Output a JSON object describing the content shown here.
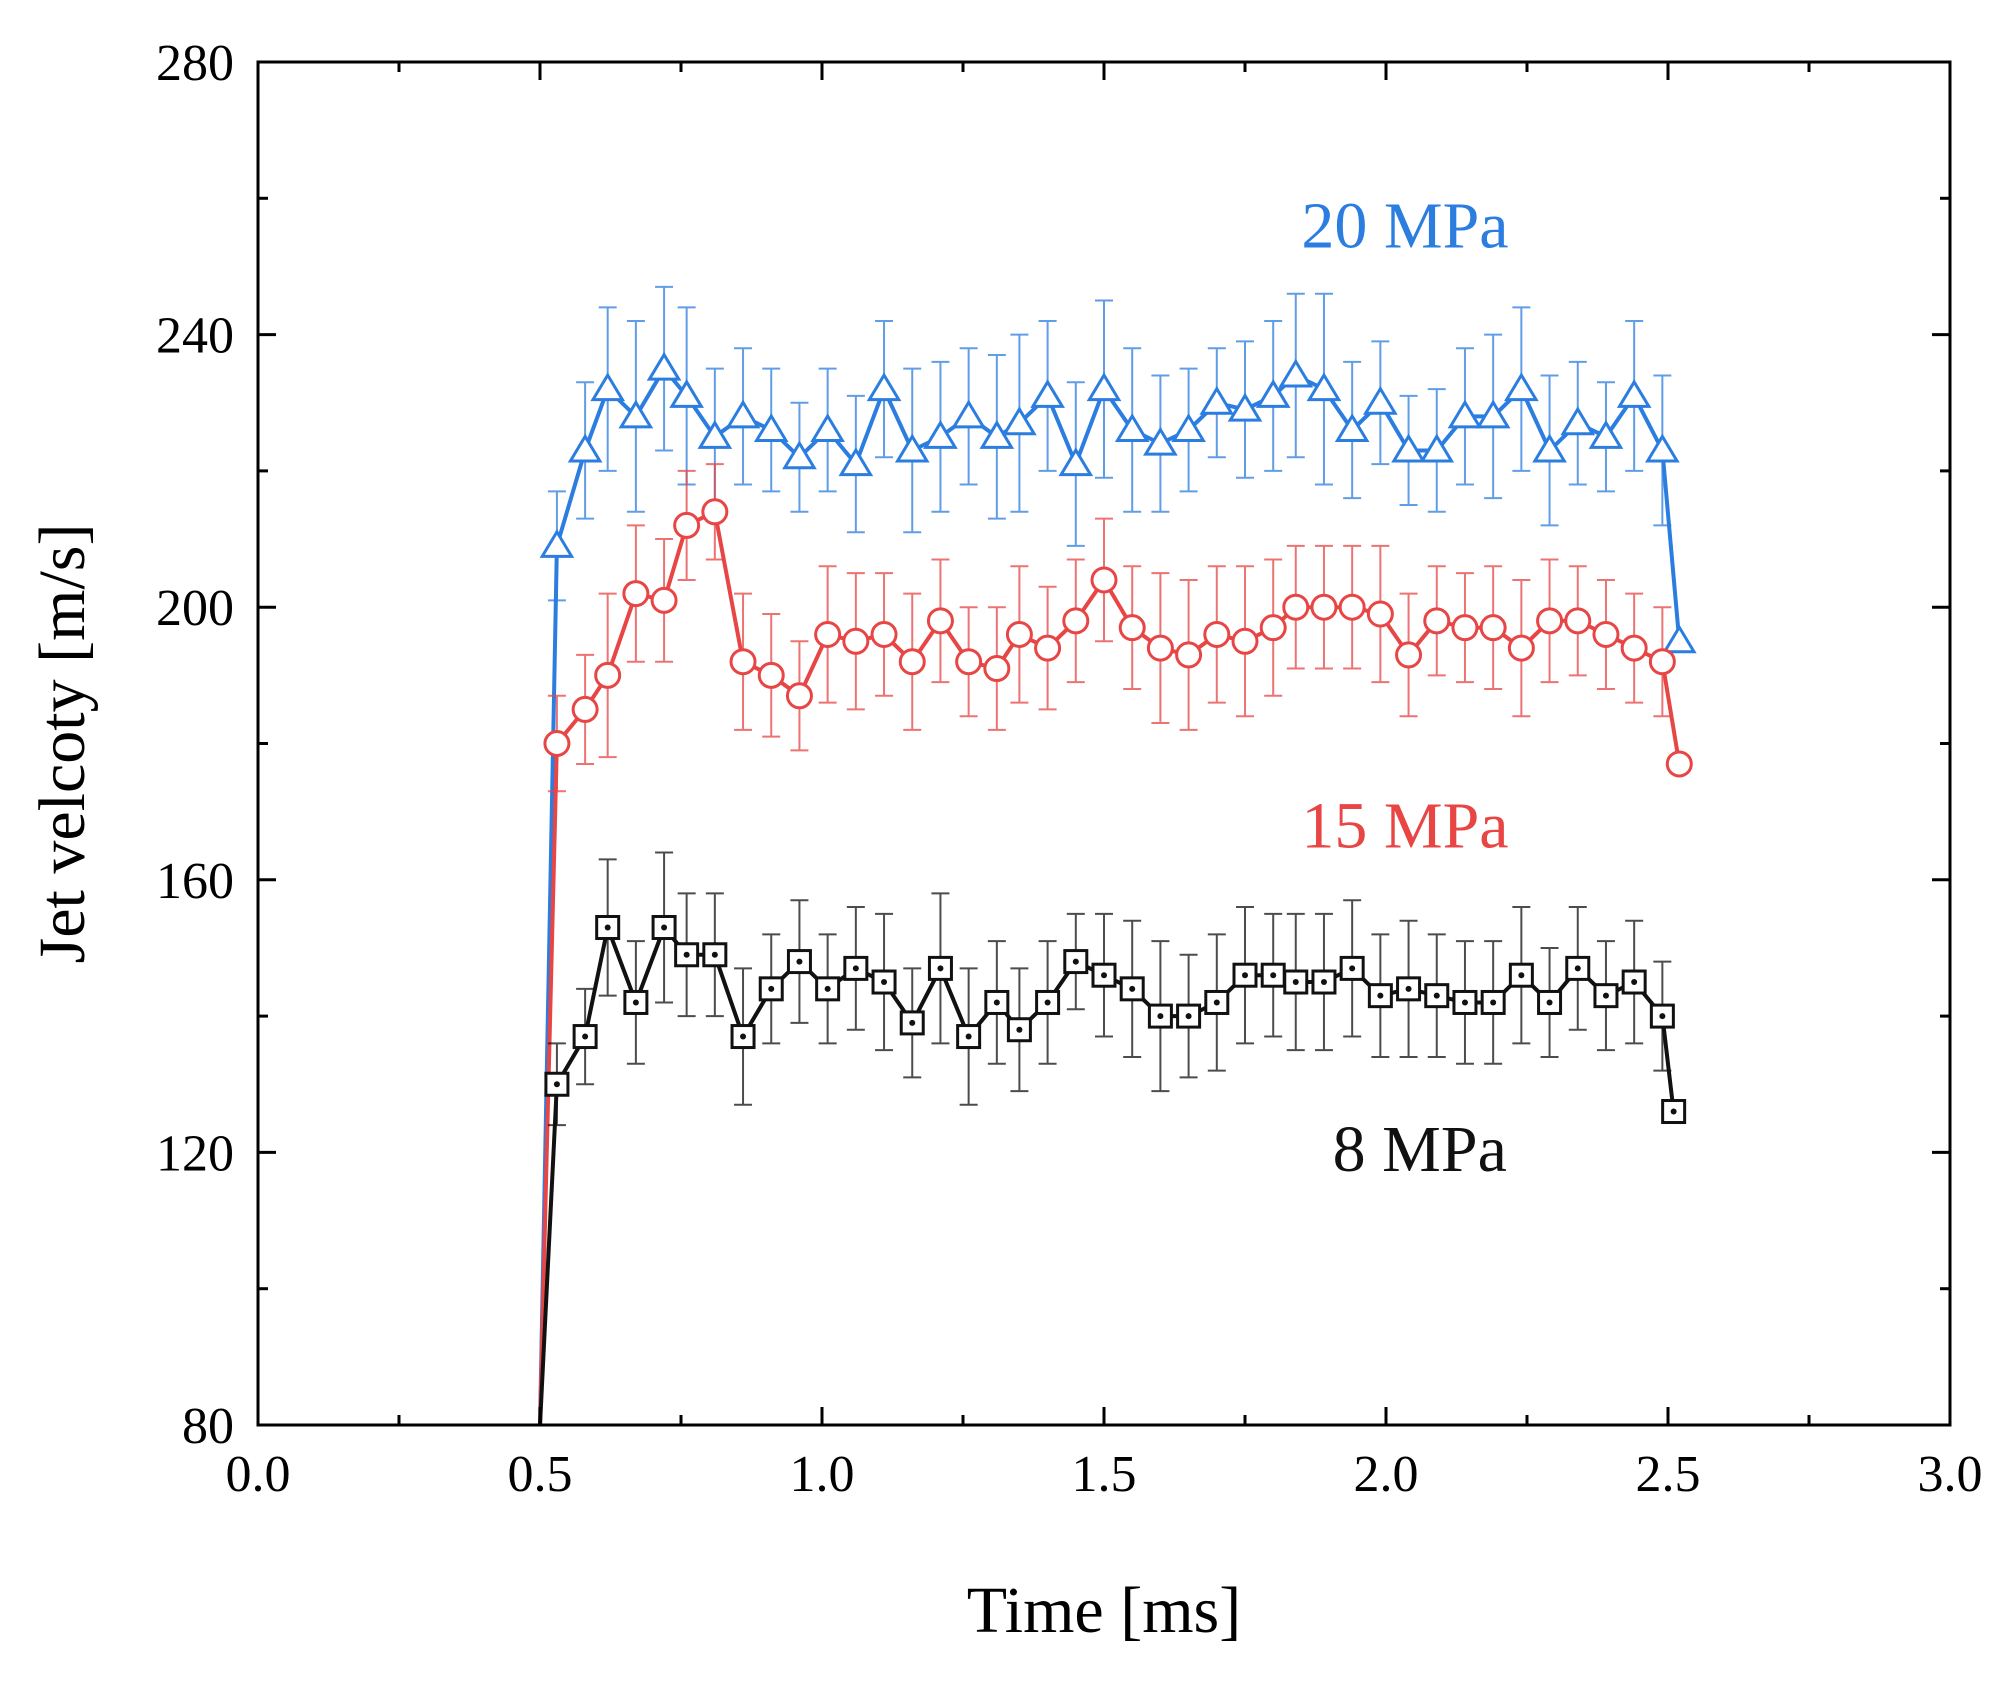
{
  "chart_data": {
    "type": "line",
    "title": "",
    "xlabel": "Time [ms]",
    "ylabel": "Jet velcoty [m/s]",
    "xlim": [
      0.0,
      3.0
    ],
    "ylim": [
      80,
      280
    ],
    "xticks": [
      0.0,
      0.5,
      1.0,
      1.5,
      2.0,
      2.5,
      3.0
    ],
    "xtick_labels": [
      "0.0",
      "0.5",
      "1.0",
      "1.5",
      "2.0",
      "2.5",
      "3.0"
    ],
    "yticks": [
      80,
      120,
      160,
      200,
      240,
      280
    ],
    "ytick_labels": [
      "80",
      "120",
      "160",
      "200",
      "240",
      "280"
    ],
    "grid": false,
    "legend": "inline labels next to series",
    "error_bars": true,
    "series": [
      {
        "name": "20 MPa",
        "label": "20 MPa",
        "color": "#2b7de0",
        "marker": "triangle",
        "x": [
          0.5,
          0.53,
          0.58,
          0.62,
          0.67,
          0.72,
          0.76,
          0.81,
          0.86,
          0.91,
          0.96,
          1.01,
          1.06,
          1.11,
          1.16,
          1.21,
          1.26,
          1.31,
          1.35,
          1.4,
          1.45,
          1.5,
          1.55,
          1.6,
          1.65,
          1.7,
          1.75,
          1.8,
          1.84,
          1.89,
          1.94,
          1.99,
          2.04,
          2.09,
          2.14,
          2.19,
          2.24,
          2.29,
          2.34,
          2.39,
          2.44,
          2.49,
          2.52
        ],
        "y": [
          80,
          209,
          223,
          232,
          228,
          235,
          231,
          225,
          228,
          226,
          222,
          226,
          221,
          232,
          223,
          225,
          228,
          225,
          227,
          231,
          221,
          232,
          226,
          224,
          226,
          230,
          229,
          231,
          234,
          232,
          226,
          230,
          223,
          223,
          228,
          228,
          232,
          223,
          227,
          225,
          231,
          223,
          195
        ],
        "err": [
          0,
          8,
          10,
          12,
          14,
          12,
          13,
          10,
          10,
          9,
          8,
          9,
          10,
          10,
          12,
          11,
          10,
          12,
          13,
          11,
          12,
          13,
          12,
          10,
          9,
          8,
          10,
          11,
          12,
          14,
          10,
          9,
          8,
          9,
          10,
          12,
          12,
          11,
          9,
          8,
          11,
          11,
          0
        ]
      },
      {
        "name": "15 MPa",
        "label": "15 MPa",
        "color": "#e84545",
        "marker": "circle",
        "x": [
          0.5,
          0.53,
          0.58,
          0.62,
          0.67,
          0.72,
          0.76,
          0.81,
          0.86,
          0.91,
          0.96,
          1.01,
          1.06,
          1.11,
          1.16,
          1.21,
          1.26,
          1.31,
          1.35,
          1.4,
          1.45,
          1.5,
          1.55,
          1.6,
          1.65,
          1.7,
          1.75,
          1.8,
          1.84,
          1.89,
          1.94,
          1.99,
          2.04,
          2.09,
          2.14,
          2.19,
          2.24,
          2.29,
          2.34,
          2.39,
          2.44,
          2.49,
          2.52
        ],
        "y": [
          80,
          180,
          185,
          190,
          202,
          201,
          212,
          214,
          192,
          190,
          187,
          196,
          195,
          196,
          192,
          198,
          192,
          191,
          196,
          194,
          198,
          204,
          197,
          194,
          193,
          196,
          195,
          197,
          200,
          200,
          200,
          199,
          193,
          198,
          197,
          197,
          194,
          198,
          198,
          196,
          194,
          192,
          177
        ],
        "err": [
          0,
          7,
          8,
          12,
          10,
          9,
          8,
          7,
          10,
          9,
          8,
          10,
          10,
          9,
          10,
          9,
          8,
          9,
          10,
          9,
          9,
          9,
          9,
          11,
          11,
          10,
          11,
          10,
          9,
          9,
          9,
          10,
          9,
          8,
          8,
          9,
          10,
          9,
          8,
          8,
          8,
          8,
          0
        ]
      },
      {
        "name": "8 MPa",
        "label": "8 MPa",
        "color": "#111111",
        "marker": "square",
        "x": [
          0.5,
          0.53,
          0.58,
          0.62,
          0.67,
          0.72,
          0.76,
          0.81,
          0.86,
          0.91,
          0.96,
          1.01,
          1.06,
          1.11,
          1.16,
          1.21,
          1.26,
          1.31,
          1.35,
          1.4,
          1.45,
          1.5,
          1.55,
          1.6,
          1.65,
          1.7,
          1.75,
          1.8,
          1.84,
          1.89,
          1.94,
          1.99,
          2.04,
          2.09,
          2.14,
          2.19,
          2.24,
          2.29,
          2.34,
          2.39,
          2.44,
          2.49,
          2.51
        ],
        "y": [
          80,
          130,
          137,
          153,
          142,
          153,
          149,
          149,
          137,
          144,
          148,
          144,
          147,
          145,
          139,
          147,
          137,
          142,
          138,
          142,
          148,
          146,
          144,
          140,
          140,
          142,
          146,
          146,
          145,
          145,
          147,
          143,
          144,
          143,
          142,
          142,
          146,
          142,
          147,
          143,
          145,
          140,
          126
        ],
        "err": [
          0,
          6,
          7,
          10,
          9,
          11,
          9,
          9,
          10,
          8,
          9,
          8,
          9,
          10,
          8,
          11,
          10,
          9,
          9,
          9,
          7,
          9,
          10,
          11,
          9,
          10,
          10,
          9,
          10,
          10,
          10,
          9,
          10,
          9,
          9,
          9,
          10,
          8,
          9,
          8,
          9,
          8,
          0
        ]
      }
    ]
  }
}
